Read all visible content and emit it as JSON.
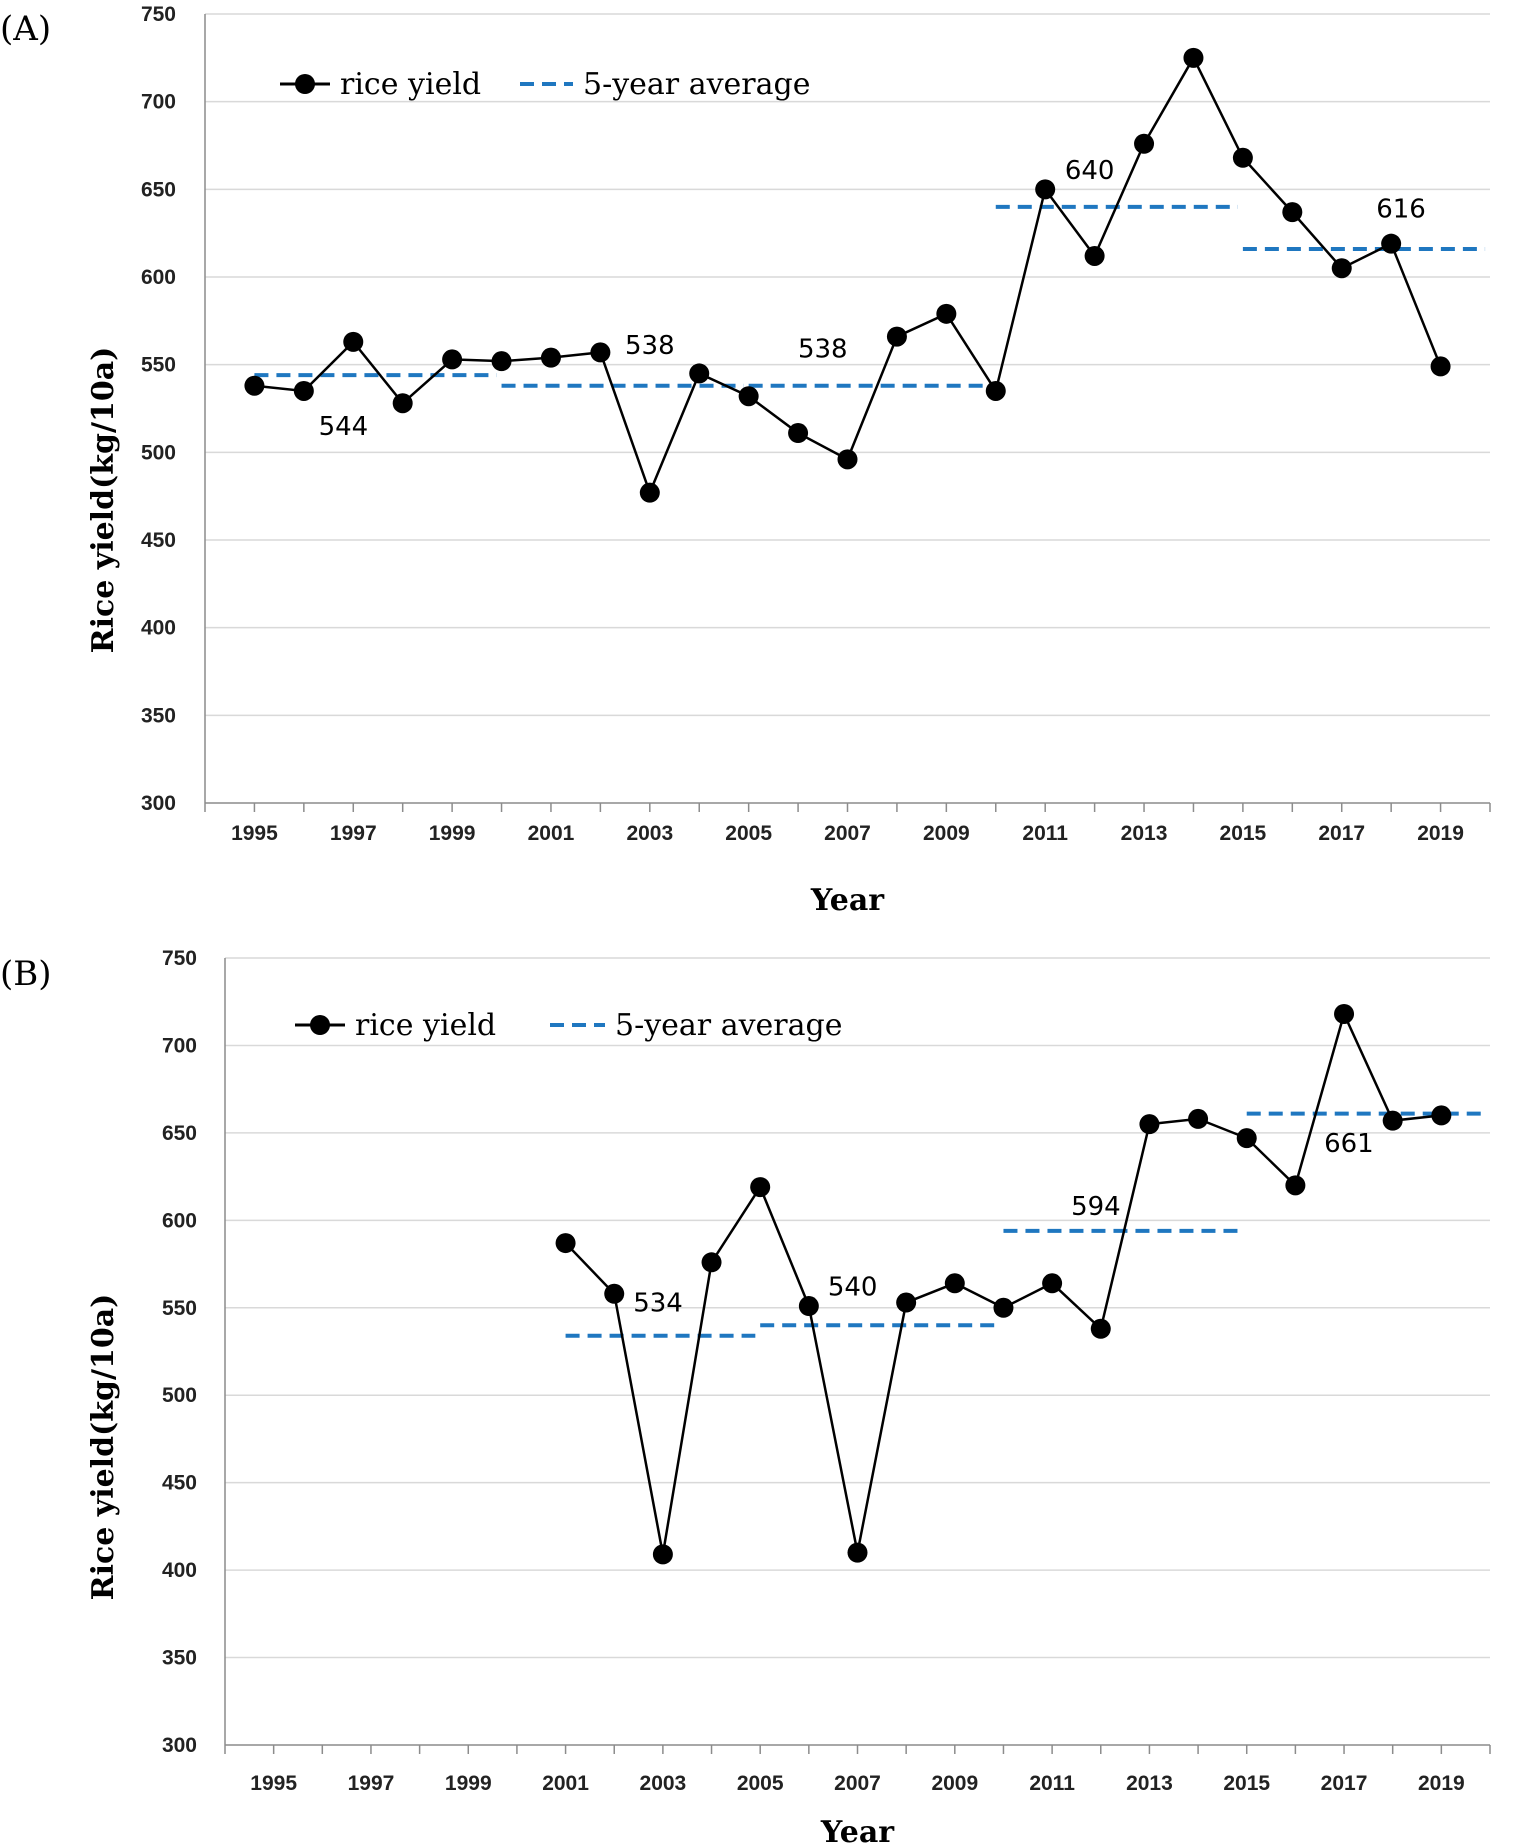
{
  "chart_data": [
    {
      "type": "line",
      "panel_label": "(A)",
      "ylabel": "Rice yield(kg/10a)",
      "xlabel": "Year",
      "ylim": [
        300,
        750
      ],
      "yticks": [
        300,
        350,
        400,
        450,
        500,
        550,
        600,
        650,
        700,
        750
      ],
      "xlim": [
        1994,
        2020
      ],
      "xticks": [
        1995,
        1997,
        1999,
        2001,
        2003,
        2005,
        2007,
        2009,
        2011,
        2013,
        2015,
        2017,
        2019
      ],
      "legend": {
        "series": "rice yield",
        "average": "5-year average",
        "position": "top-left"
      },
      "grid": true,
      "series": [
        {
          "name": "rice yield",
          "x": [
            1995,
            1996,
            1997,
            1998,
            1999,
            2000,
            2001,
            2002,
            2003,
            2004,
            2005,
            2006,
            2007,
            2008,
            2009,
            2010,
            2011,
            2012,
            2013,
            2014,
            2015,
            2016,
            2017,
            2018,
            2019
          ],
          "values": [
            538,
            535,
            563,
            528,
            553,
            552,
            554,
            557,
            477,
            545,
            532,
            511,
            496,
            566,
            579,
            535,
            650,
            612,
            676,
            725,
            668,
            637,
            605,
            619,
            549
          ]
        }
      ],
      "averages": [
        {
          "x_start": 1995,
          "x_end": 1999,
          "value": 544,
          "label": "544",
          "label_x": 1996.8,
          "label_value": 510
        },
        {
          "x_start": 2000,
          "x_end": 2004,
          "value": 538,
          "label": "538",
          "label_x": 2003,
          "label_value": 556
        },
        {
          "x_start": 2005,
          "x_end": 2009,
          "value": 538,
          "label": "538",
          "label_x": 2006.5,
          "label_value": 554
        },
        {
          "x_start": 2010,
          "x_end": 2014,
          "value": 640,
          "label": "640",
          "label_x": 2011.9,
          "label_value": 656
        },
        {
          "x_start": 2015,
          "x_end": 2019,
          "value": 616,
          "label": "616",
          "label_x": 2018.2,
          "label_value": 634
        }
      ]
    },
    {
      "type": "line",
      "panel_label": "(B)",
      "ylabel": "Rice yield(kg/10a)",
      "xlabel": "Year",
      "ylim": [
        300,
        750
      ],
      "yticks": [
        300,
        350,
        400,
        450,
        500,
        550,
        600,
        650,
        700,
        750
      ],
      "xlim": [
        1994,
        2020
      ],
      "xticks": [
        1995,
        1997,
        1999,
        2001,
        2003,
        2005,
        2007,
        2009,
        2011,
        2013,
        2015,
        2017,
        2019
      ],
      "legend": {
        "series": "rice yield",
        "average": "5-year average",
        "position": "top-left"
      },
      "grid": true,
      "series": [
        {
          "name": "rice yield",
          "x": [
            2001,
            2002,
            2003,
            2004,
            2005,
            2006,
            2007,
            2008,
            2009,
            2010,
            2011,
            2012,
            2013,
            2014,
            2015,
            2016,
            2017,
            2018,
            2019
          ],
          "values": [
            587,
            558,
            409,
            576,
            619,
            551,
            410,
            553,
            564,
            550,
            564,
            538,
            655,
            658,
            647,
            620,
            718,
            657,
            660
          ]
        }
      ],
      "averages": [
        {
          "x_start": 2001,
          "x_end": 2004,
          "value": 534,
          "label": "534",
          "label_x": 2002.9,
          "label_value": 548
        },
        {
          "x_start": 2005,
          "x_end": 2009,
          "value": 540,
          "label": "540",
          "label_x": 2006.9,
          "label_value": 557
        },
        {
          "x_start": 2010,
          "x_end": 2014,
          "value": 594,
          "label": "594",
          "label_x": 2011.9,
          "label_value": 603
        },
        {
          "x_start": 2015,
          "x_end": 2019,
          "value": 661,
          "label": "661",
          "label_x": 2017.1,
          "label_value": 639
        }
      ]
    }
  ]
}
